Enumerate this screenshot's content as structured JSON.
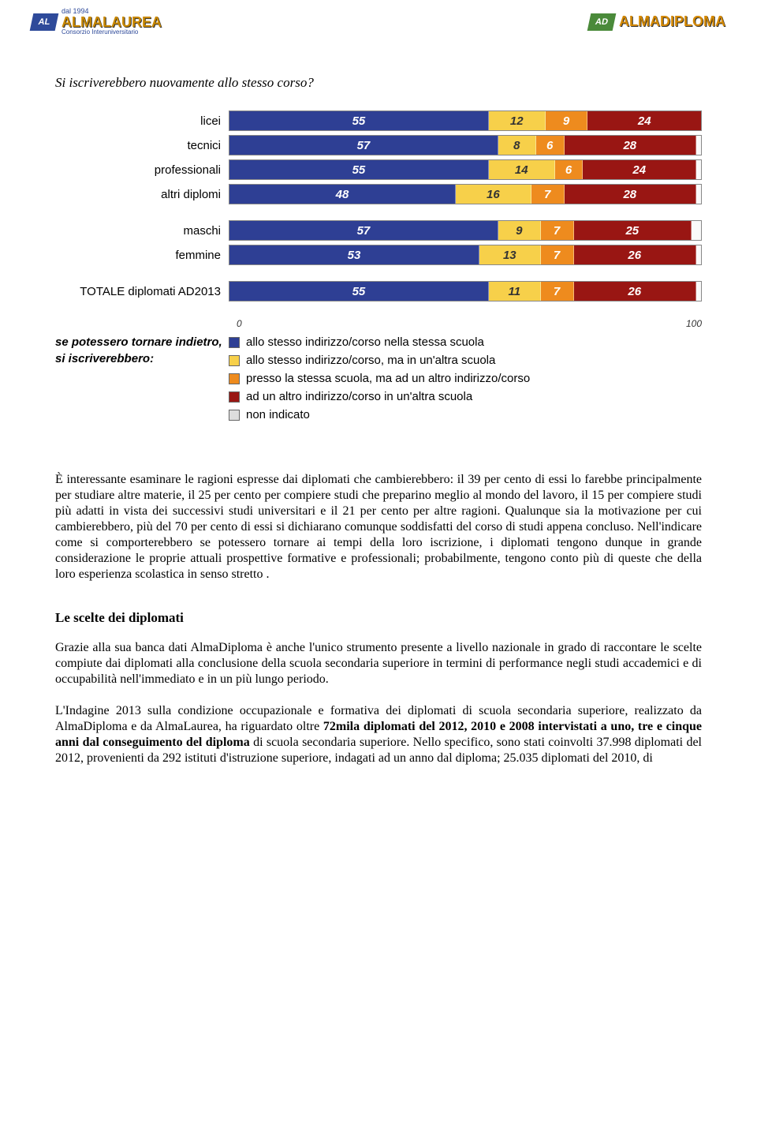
{
  "header": {
    "left_logo": {
      "badge": "AL",
      "dal": "dal 1994",
      "text": "ALMALAUREA",
      "sub": "Consorzio Interuniversitario"
    },
    "right_logo": {
      "badge": "AD",
      "text": "ALMADIPLOMA"
    }
  },
  "chart": {
    "type": "stacked-bar",
    "title": "Si iscriverebbero nuovamente allo stesso corso?",
    "xlim": [
      0,
      100
    ],
    "xtick_start": "0",
    "xtick_end": "100",
    "colors": {
      "s1": "#2e3f94",
      "s2": "#f7d04a",
      "s3": "#ee8b1e",
      "s4": "#991613",
      "s5": "#dddddd"
    },
    "groups": [
      {
        "rows": [
          {
            "label": "licei",
            "values": [
              55,
              12,
              9,
              24
            ]
          },
          {
            "label": "tecnici",
            "values": [
              57,
              8,
              6,
              28
            ]
          },
          {
            "label": "professionali",
            "values": [
              55,
              14,
              6,
              24
            ]
          },
          {
            "label": "altri diplomi",
            "values": [
              48,
              16,
              7,
              28
            ]
          }
        ]
      },
      {
        "rows": [
          {
            "label": "maschi",
            "values": [
              57,
              9,
              7,
              25
            ]
          },
          {
            "label": "femmine",
            "values": [
              53,
              13,
              7,
              26
            ]
          }
        ]
      },
      {
        "rows": [
          {
            "label": "TOTALE diplomati AD2013",
            "values": [
              55,
              11,
              7,
              26
            ]
          }
        ]
      }
    ],
    "legend_prefix_l1": "se potessero tornare indietro,",
    "legend_prefix_l2": "si iscriverebbero:",
    "legend": [
      {
        "color": "#2e3f94",
        "label": "allo stesso indirizzo/corso nella stessa scuola"
      },
      {
        "color": "#f7d04a",
        "label": "allo stesso indirizzo/corso, ma in un'altra scuola"
      },
      {
        "color": "#ee8b1e",
        "label": "presso la stessa scuola, ma ad un altro indirizzo/corso"
      },
      {
        "color": "#991613",
        "label": "ad un altro indirizzo/corso in un'altra scuola"
      },
      {
        "color": "#dddddd",
        "label": "non indicato"
      }
    ]
  },
  "body": {
    "p1": "È interessante esaminare le ragioni espresse dai diplomati che cambierebbero: il 39 per cento di essi lo farebbe principalmente per studiare altre materie, il 25 per  cento per compiere studi che preparino meglio al mondo del lavoro, il 15 per compiere studi più adatti in vista dei successivi studi universitari e il 21 per cento per altre ragioni. Qualunque sia la motivazione per cui cambierebbero, più del 70 per cento di essi si dichiarano comunque soddisfatti del corso di studi appena concluso. Nell'indicare come si comporterebbero se potessero tornare ai tempi della loro iscrizione, i diplomati tengono dunque in grande considerazione le proprie attuali prospettive formative e professionali; probabilmente, tengono conto più di queste che della loro esperienza scolastica in senso stretto .",
    "h2": "Le scelte dei diplomati",
    "p2": "Grazie alla sua banca dati AlmaDiploma è anche l'unico strumento presente a livello nazionale in grado di raccontare le scelte compiute dai diplomati alla conclusione della scuola secondaria superiore in termini di performance negli studi accademici e di occupabilità nell'immediato e in un più lungo periodo.",
    "p3a": "L'Indagine 2013 sulla condizione occupazionale e formativa dei diplomati di scuola secondaria superiore, realizzato da AlmaDiploma e da AlmaLaurea, ha riguardato oltre ",
    "p3b": "72mila diplomati del 2012, 2010 e 2008 intervistati a uno, tre e cinque anni dal conseguimento del diploma",
    "p3c": " di scuola secondaria superiore. Nello specifico, sono stati coinvolti 37.998 diplomati del 2012, provenienti da 292 istituti d'istruzione superiore, indagati ad un anno dal diploma; 25.035 diplomati del 2010, di"
  }
}
